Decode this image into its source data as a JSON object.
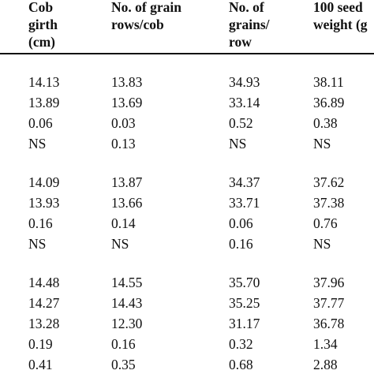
{
  "table": {
    "headers": [
      [
        "Cob",
        "girth",
        "(cm)"
      ],
      [
        "No. of grain",
        "rows/cob",
        ""
      ],
      [
        "No. of",
        "grains/",
        "row"
      ],
      [
        "100 seed",
        "weight (g",
        ""
      ]
    ],
    "groups": [
      [
        [
          "14.13",
          "13.83",
          "34.93",
          "38.11"
        ],
        [
          "13.89",
          "13.69",
          "33.14",
          "36.89"
        ],
        [
          "0.06",
          "0.03",
          "0.52",
          "0.38"
        ],
        [
          "NS",
          "0.13",
          "NS",
          "NS"
        ]
      ],
      [
        [
          "14.09",
          "13.87",
          "34.37",
          "37.62"
        ],
        [
          "13.93",
          "13.66",
          "33.71",
          "37.38"
        ],
        [
          "0.16",
          "0.14",
          "0.06",
          "0.76"
        ],
        [
          "NS",
          "NS",
          "0.16",
          "NS"
        ]
      ],
      [
        [
          "14.48",
          "14.55",
          "35.70",
          "37.96"
        ],
        [
          "14.27",
          "14.43",
          "35.25",
          "37.77"
        ],
        [
          "13.28",
          "12.30",
          "31.17",
          "36.78"
        ],
        [
          "0.19",
          "0.16",
          "0.32",
          "1.34"
        ],
        [
          "0.41",
          "0.35",
          "0.68",
          "2.88"
        ]
      ]
    ]
  }
}
